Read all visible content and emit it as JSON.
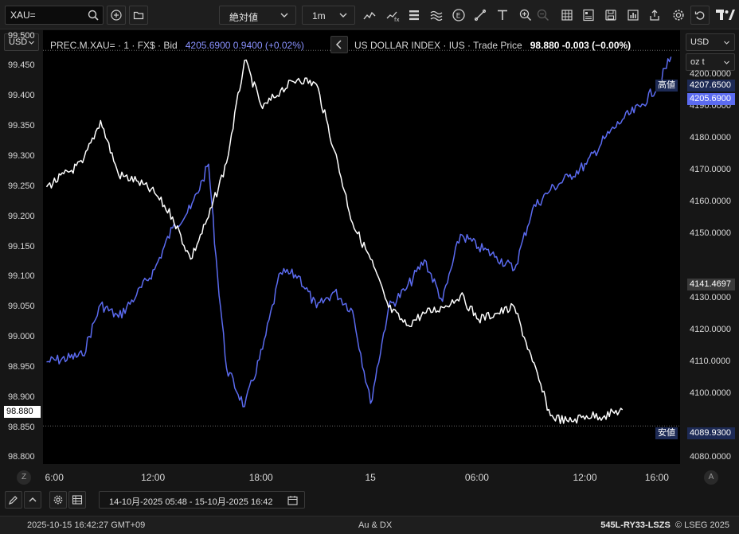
{
  "toolbar": {
    "symbol_value": "XAU=",
    "chart_type": "絶対値",
    "interval": "1m"
  },
  "chart": {
    "left_currency": "USD",
    "right_currency": "USD",
    "right_unit": "oz t",
    "legend_primary_name": "PREC.M.XAU= · 1 · FX$ · Bid",
    "legend_primary_price": "4205.6900",
    "legend_primary_change": "0.9400 (+0.02%)",
    "legend_secondary_name": "US DOLLAR INDEX · IUS · Trade Price",
    "legend_secondary_price": "98.880",
    "legend_secondary_change": "-0.003 (−0.00%)",
    "high_label": "高値",
    "low_label": "安値",
    "tag_high": "4207.6500",
    "tag_last_blue": "4205.6900",
    "tag_cursor": "4141.4697",
    "tag_low": "4089.9300",
    "tag_last_white": "98.880",
    "left_circle": "Z",
    "right_circle": "A",
    "gold_color": "#5b6bf0",
    "dxy_color": "#ffffff"
  },
  "chart_data": {
    "type": "line",
    "title": "",
    "x_ticks": [
      "6:00",
      "12:00",
      "18:00",
      "15",
      "06:00",
      "12:00",
      "16:00"
    ],
    "y_left_ticks": [
      "99.500",
      "99.450",
      "99.400",
      "99.350",
      "99.300",
      "99.250",
      "99.200",
      "99.150",
      "99.100",
      "99.050",
      "99.000",
      "98.950",
      "98.900",
      "98.850",
      "98.800"
    ],
    "y_right_ticks": [
      "4200.0000",
      "4190.0000",
      "4180.0000",
      "4170.0000",
      "4160.0000",
      "4150.0000",
      "4130.0000",
      "4120.0000",
      "4110.0000",
      "4100.0000",
      "4080.0000"
    ],
    "y_left_range": [
      98.79,
      99.51
    ],
    "y_right_range": [
      4078,
      4214
    ],
    "series": [
      {
        "name": "PREC.M.XAU= · 1 · FX$ · Bid",
        "axis": "right",
        "x": [
          "14 06:00",
          "14 08:00",
          "14 09:00",
          "14 10:00",
          "14 11:00",
          "14 12:00",
          "14 13:00",
          "14 14:00",
          "14 14:40",
          "14 15:00",
          "14 15:30",
          "14 16:00",
          "14 17:00",
          "14 18:00",
          "14 19:00",
          "14 20:00",
          "14 21:00",
          "14 22:00",
          "14 23:00",
          "15 00:00",
          "15 01:00",
          "15 02:00",
          "15 03:00",
          "15 04:00",
          "15 05:00",
          "15 06:00",
          "15 07:00",
          "15 08:00",
          "15 09:00",
          "15 10:00",
          "15 11:00",
          "15 12:00",
          "15 13:00",
          "15 14:00",
          "15 15:00",
          "15 16:00",
          "15 16:42"
        ],
        "y": [
          4110,
          4112,
          4128,
          4124,
          4131,
          4139,
          4152,
          4158,
          4167,
          4172,
          4137,
          4108,
          4096,
          4114,
          4138,
          4137,
          4127,
          4132,
          4126,
          4097,
          4127,
          4133,
          4142,
          4129,
          4150,
          4146,
          4143,
          4139,
          4158,
          4164,
          4168,
          4172,
          4180,
          4186,
          4190,
          4197,
          4205.69
        ]
      },
      {
        "name": "US DOLLAR INDEX · IUS · Trade Price",
        "axis": "left",
        "x": [
          "14 06:00",
          "14 08:00",
          "14 09:00",
          "14 10:00",
          "14 11:00",
          "14 12:00",
          "14 13:00",
          "14 14:00",
          "14 15:00",
          "14 16:00",
          "14 17:00",
          "14 18:00",
          "14 19:00",
          "14 20:00",
          "14 21:00",
          "14 22:00",
          "14 23:00",
          "15 00:00",
          "15 01:00",
          "15 02:00",
          "15 03:00",
          "15 04:00",
          "15 05:00",
          "15 06:00",
          "15 07:00",
          "15 08:00",
          "15 09:00",
          "15 10:00",
          "15 11:00",
          "15 12:00",
          "15 13:00",
          "15 14:00"
        ],
        "y": [
          99.25,
          99.29,
          99.36,
          99.27,
          99.26,
          99.24,
          99.2,
          99.13,
          99.2,
          99.29,
          99.46,
          99.38,
          99.41,
          99.43,
          99.42,
          99.31,
          99.19,
          99.13,
          99.05,
          99.02,
          99.04,
          99.05,
          99.07,
          99.03,
          99.04,
          99.05,
          98.96,
          98.87,
          98.86,
          98.87,
          98.87,
          98.88
        ]
      }
    ],
    "grid": false,
    "legend_placement": "top-left"
  },
  "bottom": {
    "date_range": "14-10月-2025 05:48 - 15-10月-2025 16:42"
  },
  "status": {
    "timestamp": "2025-10-15 16:42:27 GMT+09",
    "center": "Au & DX",
    "right_code": "545L-RY33-LSZS",
    "copyright": "© LSEG 2025"
  }
}
